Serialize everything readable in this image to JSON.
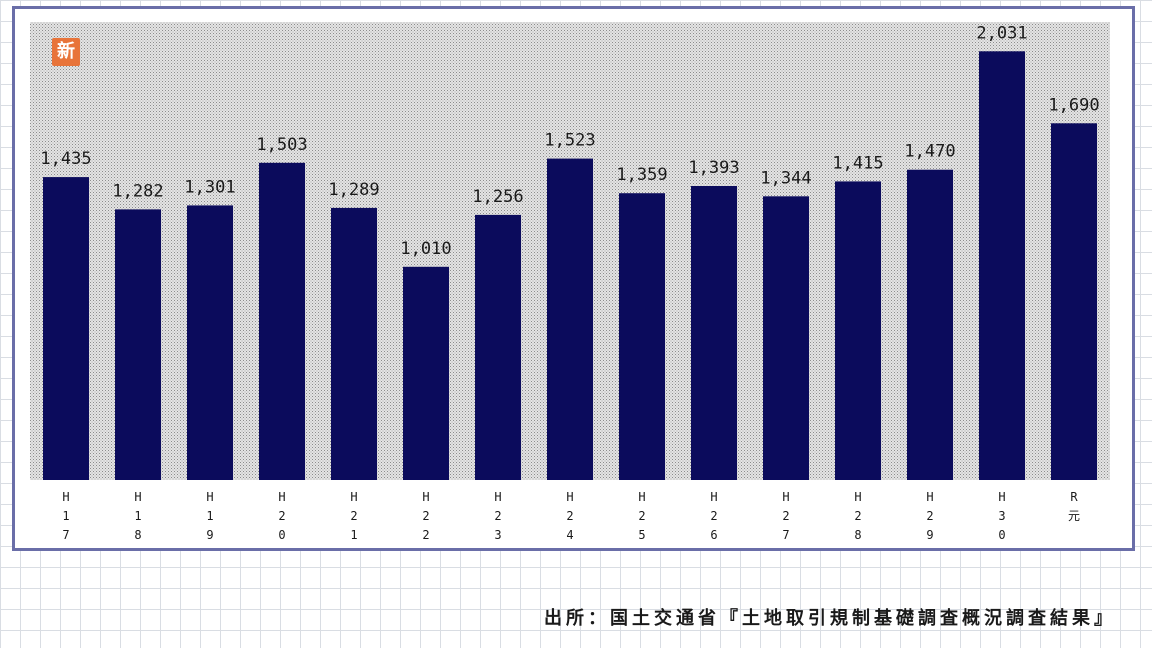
{
  "badge": {
    "text": "新"
  },
  "source": "出所：国土交通省『土地取引規制基礎調査概況調査結果』",
  "colors": {
    "bar": "#0b0b5c",
    "frame": "#6a6ea8",
    "badge": "#e8743a"
  },
  "chart_data": {
    "type": "bar",
    "title": "",
    "xlabel": "",
    "ylabel": "",
    "grid": false,
    "ylim": [
      0,
      2170
    ],
    "categories": [
      "H17",
      "H18",
      "H19",
      "H20",
      "H21",
      "H22",
      "H23",
      "H24",
      "H25",
      "H26",
      "H27",
      "H28",
      "H29",
      "H30",
      "R元"
    ],
    "tick_labels": [
      [
        "H",
        "1",
        "7"
      ],
      [
        "H",
        "1",
        "8"
      ],
      [
        "H",
        "1",
        "9"
      ],
      [
        "H",
        "2",
        "0"
      ],
      [
        "H",
        "2",
        "1"
      ],
      [
        "H",
        "2",
        "2"
      ],
      [
        "H",
        "2",
        "3"
      ],
      [
        "H",
        "2",
        "4"
      ],
      [
        "H",
        "2",
        "5"
      ],
      [
        "H",
        "2",
        "6"
      ],
      [
        "H",
        "2",
        "7"
      ],
      [
        "H",
        "2",
        "8"
      ],
      [
        "H",
        "2",
        "9"
      ],
      [
        "H",
        "3",
        "0"
      ],
      [
        "R",
        "元"
      ]
    ],
    "values": [
      1435,
      1282,
      1301,
      1503,
      1289,
      1010,
      1256,
      1523,
      1359,
      1393,
      1344,
      1415,
      1470,
      2031,
      1690
    ],
    "value_labels": [
      "1,435",
      "1,282",
      "1,301",
      "1,503",
      "1,289",
      "1,010",
      "1,256",
      "1,523",
      "1,359",
      "1,393",
      "1,344",
      "1,415",
      "1,470",
      "2,031",
      "1,690"
    ]
  }
}
